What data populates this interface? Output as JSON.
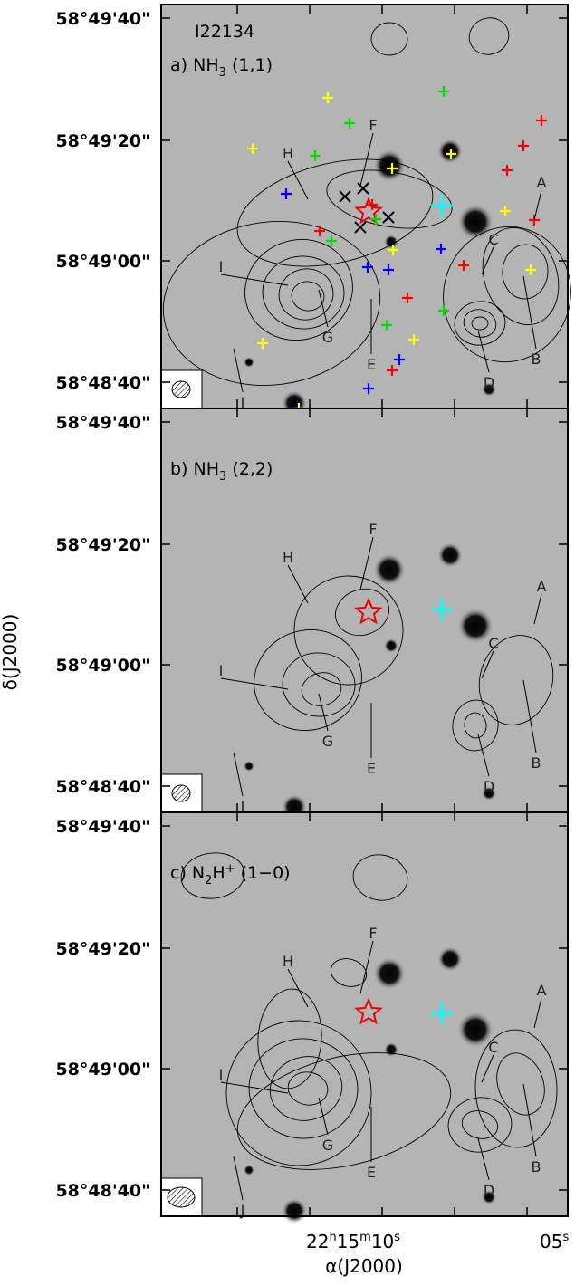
{
  "field": "I22134",
  "panels": [
    {
      "prefix": "a)",
      "molecule": "NH",
      "sub": "3",
      "transition": "(1,1)",
      "y_tick_labels": [
        "58°49'40\"",
        "58°49'20\"",
        "58°49'00\"",
        "58°48'40\""
      ],
      "labels": [
        "A",
        "B",
        "C",
        "D",
        "E",
        "F",
        "G",
        "H",
        "I",
        "J"
      ]
    },
    {
      "prefix": "b)",
      "molecule": "NH",
      "sub": "3",
      "transition": "(2,2)",
      "y_tick_labels": [
        "58°49'40\"",
        "58°49'20\"",
        "58°49'00\"",
        "58°48'40\""
      ],
      "labels": [
        "A",
        "B",
        "C",
        "D",
        "E",
        "F",
        "G",
        "H",
        "I",
        "J"
      ]
    },
    {
      "prefix": "c)",
      "molecule": "N",
      "sub": "2",
      "sup": "H",
      "charge": "+",
      "transition": "(1−0)",
      "y_tick_labels": [
        "58°49'40\"",
        "58°49'20\"",
        "58°49'00\"",
        "58°48'40\""
      ],
      "labels": [
        "A",
        "B",
        "C",
        "D",
        "E",
        "F",
        "G",
        "H",
        "I",
        "J"
      ]
    }
  ],
  "x_tick_labels": [
    [
      "22",
      "h",
      "15",
      "m",
      "10",
      "s"
    ],
    [
      "05",
      "s"
    ]
  ],
  "y_axis_label": "δ(J2000)",
  "x_axis_label": "α(J2000)"
}
